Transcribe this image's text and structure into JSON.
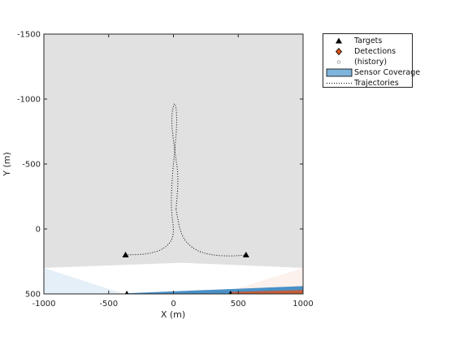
{
  "chart_data": {
    "type": "scatter",
    "xlabel": "X (m)",
    "ylabel": "Y (m)",
    "xlim": [
      -1000,
      1000
    ],
    "ylim": [
      -1500,
      500
    ],
    "y_axis_reversed": true,
    "x_ticks": [
      -1000,
      -500,
      0,
      500,
      1000
    ],
    "y_ticks": [
      -1500,
      -1000,
      -500,
      0,
      500
    ],
    "grid": false,
    "legend_position": "outside-top-right",
    "legend": [
      "Targets",
      "Detections",
      "(history)",
      "Sensor Coverage",
      "Trajectories"
    ],
    "targets": [
      {
        "x": -370,
        "y": 200
      },
      {
        "x": 560,
        "y": 200
      },
      {
        "x": -360,
        "y": 500
      },
      {
        "x": 440,
        "y": 500
      }
    ],
    "trajectories": [
      {
        "x": [
          -370,
          -200,
          -60,
          10,
          -20,
          -10,
          10,
          30,
          10,
          -20,
          10,
          40,
          20
        ],
        "y": [
          200,
          195,
          150,
          50,
          -150,
          -400,
          -600,
          -850,
          -1000,
          -850,
          -600,
          -400,
          -150
        ]
      },
      {
        "x": [
          20,
          60,
          160,
          280,
          440,
          560
        ],
        "y": [
          -150,
          60,
          160,
          200,
          210,
          200
        ]
      }
    ],
    "sensor_coverage": [
      {
        "color": "#4a90c8",
        "x": [
          -1000,
          -1000,
          -380
        ],
        "y": [
          300,
          500,
          500
        ]
      },
      {
        "color": "#e89a7a",
        "x": [
          1000,
          1000,
          360
        ],
        "y": [
          300,
          500,
          500
        ]
      },
      {
        "color": "#bdbdbd",
        "x": [
          -1000,
          1000,
          1000,
          60,
          -1000
        ],
        "y": [
          -1500,
          -1500,
          300,
          260,
          300
        ]
      }
    ],
    "colors": {
      "target": "#000000",
      "detection": "#d95319",
      "history": "#9a9a9a",
      "coverage_legend": "#7fb5dc",
      "bottom_band_blue": "#3f8ac4",
      "bottom_band_red": "#d0582a"
    }
  }
}
